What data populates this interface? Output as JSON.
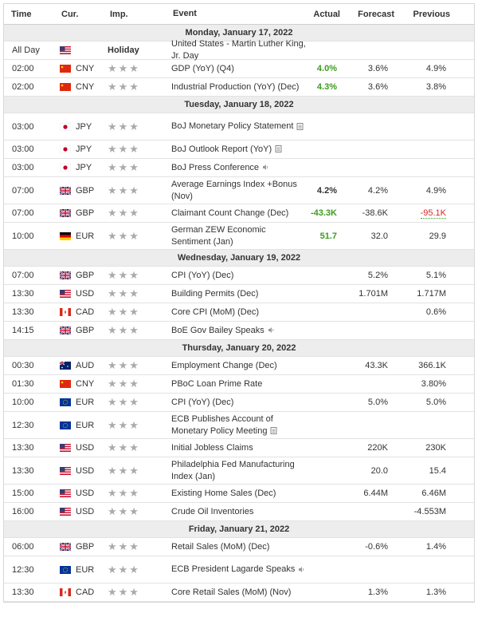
{
  "header": {
    "time": "Time",
    "cur": "Cur.",
    "imp": "Imp.",
    "event": "Event",
    "actual": "Actual",
    "forecast": "Forecast",
    "previous": "Previous"
  },
  "colors": {
    "positive": "#3c9b1e",
    "negative": "#d62828",
    "day_bg": "#ededed",
    "star": "#aaaaaa"
  },
  "days": [
    {
      "label": "Monday, January 17, 2022",
      "rows": [
        {
          "time": "All Day",
          "flag": "us",
          "cur": "",
          "imp": "Holiday",
          "event": "United States - Martin Luther King, Jr. Day",
          "icon": "",
          "actual": "",
          "actual_color": "",
          "forecast": "",
          "previous": "",
          "prev_style": ""
        },
        {
          "time": "02:00",
          "flag": "cn",
          "cur": "CNY",
          "imp": "★★★",
          "event": "GDP (YoY) (Q4)",
          "icon": "",
          "actual": "4.0%",
          "actual_color": "green",
          "forecast": "3.6%",
          "previous": "4.9%",
          "prev_style": ""
        },
        {
          "time": "02:00",
          "flag": "cn",
          "cur": "CNY",
          "imp": "★★★",
          "event": "Industrial Production (YoY) (Dec)",
          "icon": "",
          "actual": "4.3%",
          "actual_color": "green",
          "forecast": "3.6%",
          "previous": "3.8%",
          "prev_style": ""
        }
      ]
    },
    {
      "label": "Tuesday, January 18, 2022",
      "rows": [
        {
          "time": "03:00",
          "flag": "jp",
          "cur": "JPY",
          "imp": "★★★",
          "event": "BoJ Monetary Policy Statement",
          "icon": "document-icon",
          "actual": "",
          "actual_color": "",
          "forecast": "",
          "previous": "",
          "prev_style": "",
          "tall": true
        },
        {
          "time": "03:00",
          "flag": "jp",
          "cur": "JPY",
          "imp": "★★★",
          "event": "BoJ Outlook Report (YoY)",
          "icon": "document-icon",
          "actual": "",
          "actual_color": "",
          "forecast": "",
          "previous": "",
          "prev_style": ""
        },
        {
          "time": "03:00",
          "flag": "jp",
          "cur": "JPY",
          "imp": "★★★",
          "event": "BoJ Press Conference",
          "icon": "speaker-icon",
          "actual": "",
          "actual_color": "",
          "forecast": "",
          "previous": "",
          "prev_style": ""
        },
        {
          "time": "07:00",
          "flag": "gb",
          "cur": "GBP",
          "imp": "★★★",
          "event": "Average Earnings Index +Bonus (Nov)",
          "icon": "",
          "actual": "4.2%",
          "actual_color": "",
          "forecast": "4.2%",
          "previous": "4.9%",
          "prev_style": "",
          "tall": true
        },
        {
          "time": "07:00",
          "flag": "gb",
          "cur": "GBP",
          "imp": "★★★",
          "event": "Claimant Count Change (Dec)",
          "icon": "",
          "actual": "-43.3K",
          "actual_color": "green",
          "forecast": "-38.6K",
          "previous": "-95.1K",
          "prev_style": "revised"
        },
        {
          "time": "10:00",
          "flag": "de",
          "cur": "EUR",
          "imp": "★★★",
          "event": "German ZEW Economic Sentiment (Jan)",
          "icon": "",
          "actual": "51.7",
          "actual_color": "green",
          "forecast": "32.0",
          "previous": "29.9",
          "prev_style": "",
          "tall": true
        }
      ]
    },
    {
      "label": "Wednesday, January 19, 2022",
      "rows": [
        {
          "time": "07:00",
          "flag": "gb",
          "cur": "GBP",
          "imp": "★★★",
          "event": "CPI (YoY) (Dec)",
          "icon": "",
          "actual": "",
          "actual_color": "",
          "forecast": "5.2%",
          "previous": "5.1%",
          "prev_style": ""
        },
        {
          "time": "13:30",
          "flag": "us",
          "cur": "USD",
          "imp": "★★★",
          "event": "Building Permits (Dec)",
          "icon": "",
          "actual": "",
          "actual_color": "",
          "forecast": "1.701M",
          "previous": "1.717M",
          "prev_style": ""
        },
        {
          "time": "13:30",
          "flag": "ca",
          "cur": "CAD",
          "imp": "★★★",
          "event": "Core CPI (MoM) (Dec)",
          "icon": "",
          "actual": "",
          "actual_color": "",
          "forecast": "",
          "previous": "0.6%",
          "prev_style": ""
        },
        {
          "time": "14:15",
          "flag": "gb",
          "cur": "GBP",
          "imp": "★★★",
          "event": "BoE Gov Bailey Speaks",
          "icon": "speaker-icon",
          "actual": "",
          "actual_color": "",
          "forecast": "",
          "previous": "",
          "prev_style": ""
        }
      ]
    },
    {
      "label": "Thursday, January 20, 2022",
      "rows": [
        {
          "time": "00:30",
          "flag": "au",
          "cur": "AUD",
          "imp": "★★★",
          "event": "Employment Change (Dec)",
          "icon": "",
          "actual": "",
          "actual_color": "",
          "forecast": "43.3K",
          "previous": "366.1K",
          "prev_style": ""
        },
        {
          "time": "01:30",
          "flag": "cn",
          "cur": "CNY",
          "imp": "★★★",
          "event": "PBoC Loan Prime Rate",
          "icon": "",
          "actual": "",
          "actual_color": "",
          "forecast": "",
          "previous": "3.80%",
          "prev_style": ""
        },
        {
          "time": "10:00",
          "flag": "eu",
          "cur": "EUR",
          "imp": "★★★",
          "event": "CPI (YoY) (Dec)",
          "icon": "",
          "actual": "",
          "actual_color": "",
          "forecast": "5.0%",
          "previous": "5.0%",
          "prev_style": ""
        },
        {
          "time": "12:30",
          "flag": "eu",
          "cur": "EUR",
          "imp": "★★★",
          "event": "ECB Publishes Account of Monetary Policy Meeting",
          "icon": "document-icon",
          "actual": "",
          "actual_color": "",
          "forecast": "",
          "previous": "",
          "prev_style": "",
          "tall": true
        },
        {
          "time": "13:30",
          "flag": "us",
          "cur": "USD",
          "imp": "★★★",
          "event": "Initial Jobless Claims",
          "icon": "",
          "actual": "",
          "actual_color": "",
          "forecast": "220K",
          "previous": "230K",
          "prev_style": ""
        },
        {
          "time": "13:30",
          "flag": "us",
          "cur": "USD",
          "imp": "★★★",
          "event": "Philadelphia Fed Manufacturing Index (Jan)",
          "icon": "",
          "actual": "",
          "actual_color": "",
          "forecast": "20.0",
          "previous": "15.4",
          "prev_style": "",
          "tall": true
        },
        {
          "time": "15:00",
          "flag": "us",
          "cur": "USD",
          "imp": "★★★",
          "event": "Existing Home Sales (Dec)",
          "icon": "",
          "actual": "",
          "actual_color": "",
          "forecast": "6.44M",
          "previous": "6.46M",
          "prev_style": ""
        },
        {
          "time": "16:00",
          "flag": "us",
          "cur": "USD",
          "imp": "★★★",
          "event": "Crude Oil Inventories",
          "icon": "",
          "actual": "",
          "actual_color": "",
          "forecast": "",
          "previous": "-4.553M",
          "prev_style": ""
        }
      ]
    },
    {
      "label": "Friday, January 21, 2022",
      "rows": [
        {
          "time": "06:00",
          "flag": "gb",
          "cur": "GBP",
          "imp": "★★★",
          "event": "Retail Sales (MoM) (Dec)",
          "icon": "",
          "actual": "",
          "actual_color": "",
          "forecast": "-0.6%",
          "previous": "1.4%",
          "prev_style": ""
        },
        {
          "time": "12:30",
          "flag": "eu",
          "cur": "EUR",
          "imp": "★★★",
          "event": "ECB President Lagarde Speaks",
          "icon": "speaker-icon",
          "actual": "",
          "actual_color": "",
          "forecast": "",
          "previous": "",
          "prev_style": "",
          "tall": true
        },
        {
          "time": "13:30",
          "flag": "ca",
          "cur": "CAD",
          "imp": "★★★",
          "event": "Core Retail Sales (MoM) (Nov)",
          "icon": "",
          "actual": "",
          "actual_color": "",
          "forecast": "1.3%",
          "previous": "1.3%",
          "prev_style": ""
        }
      ]
    }
  ]
}
